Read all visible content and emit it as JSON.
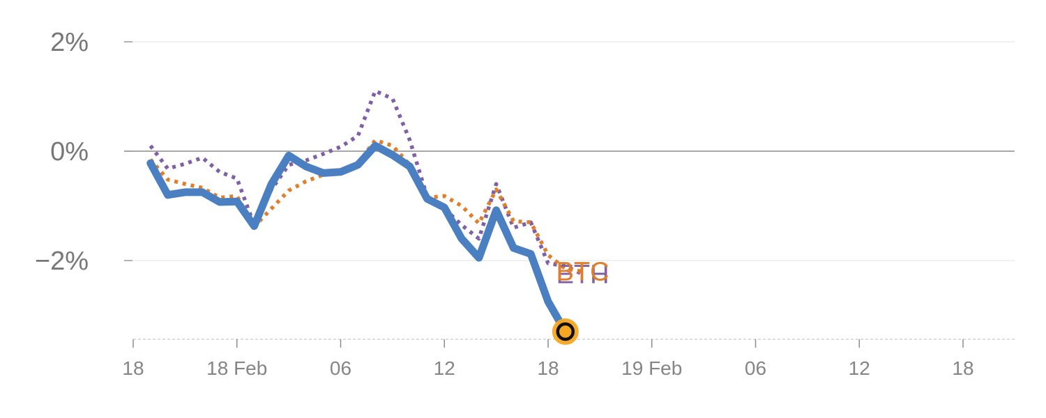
{
  "chart_data": {
    "type": "line",
    "x_tick_labels": [
      {
        "t": 0,
        "label": "18"
      },
      {
        "t": 6,
        "label": "18 Feb"
      },
      {
        "t": 12,
        "label": "06"
      },
      {
        "t": 18,
        "label": "12"
      },
      {
        "t": 24,
        "label": "18"
      },
      {
        "t": 30,
        "label": "19 Feb"
      },
      {
        "t": 36,
        "label": "06"
      },
      {
        "t": 42,
        "label": "12"
      },
      {
        "t": 48,
        "label": "18"
      }
    ],
    "y_ticks": [
      {
        "value": 2,
        "label": "2%"
      },
      {
        "value": 0,
        "label": "0%"
      },
      {
        "value": -2,
        "label": "−2%"
      }
    ],
    "xlim": [
      0,
      51.5
    ],
    "ylim": [
      -3.4,
      2.35
    ],
    "zero_line": true,
    "series": [
      {
        "name": "",
        "color": "#4a7fc1",
        "style": "solid",
        "x": [
          1,
          2,
          3,
          4,
          5,
          6,
          7,
          8,
          9,
          10,
          11,
          12,
          13,
          14,
          15,
          16,
          17,
          18,
          19,
          20,
          21,
          22,
          23,
          24,
          25
        ],
        "y": [
          -0.22,
          -0.8,
          -0.75,
          -0.75,
          -0.93,
          -0.92,
          -1.37,
          -0.6,
          -0.08,
          -0.28,
          -0.4,
          -0.38,
          -0.25,
          0.1,
          -0.07,
          -0.28,
          -0.87,
          -1.03,
          -1.6,
          -1.95,
          -1.08,
          -1.77,
          -1.88,
          -2.75,
          -3.3
        ],
        "end_marker": true
      },
      {
        "name": "ETH",
        "color": "#7f5fa5",
        "style": "dotted",
        "x": [
          1,
          2,
          3,
          4,
          5,
          6,
          7,
          8,
          9,
          10,
          11,
          12,
          13,
          14,
          15,
          16,
          17,
          18,
          19,
          20,
          21,
          22,
          23,
          24,
          25,
          26
        ],
        "y": [
          0.1,
          -0.32,
          -0.23,
          -0.12,
          -0.38,
          -0.5,
          -1.35,
          -0.7,
          -0.25,
          -0.17,
          -0.05,
          0.08,
          0.28,
          1.1,
          0.96,
          0.2,
          -0.83,
          -1.05,
          -1.35,
          -1.6,
          -0.6,
          -1.4,
          -1.3,
          -2.05,
          -2.1,
          -2.25
        ]
      },
      {
        "name": "BTC",
        "color": "#e07e2a",
        "style": "dotted",
        "x": [
          1,
          2,
          3,
          4,
          5,
          6,
          7,
          8,
          9,
          10,
          11,
          12,
          13,
          14,
          15,
          16,
          17,
          18,
          19,
          20,
          21,
          22,
          23,
          24,
          25,
          26
        ],
        "y": [
          -0.15,
          -0.52,
          -0.6,
          -0.67,
          -0.85,
          -0.82,
          -1.38,
          -1.05,
          -0.72,
          -0.55,
          -0.43,
          -0.38,
          -0.22,
          0.2,
          0.1,
          -0.25,
          -0.85,
          -0.82,
          -1.0,
          -1.32,
          -0.7,
          -1.28,
          -1.3,
          -1.9,
          -2.15,
          -2.2
        ]
      }
    ]
  }
}
